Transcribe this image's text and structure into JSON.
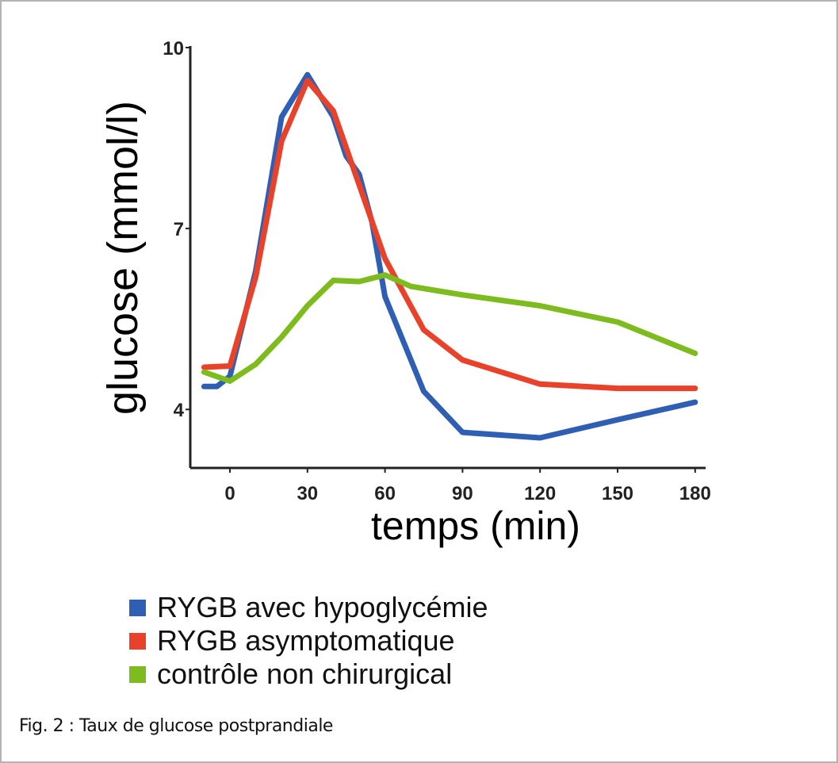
{
  "chart_data": {
    "type": "line",
    "title": "",
    "xlabel": "temps (min)",
    "ylabel": "glucose (mmol/l)",
    "xlim": [
      -15,
      184
    ],
    "ylim": [
      3.03,
      10
    ],
    "xticks": [
      0,
      30,
      60,
      90,
      120,
      150,
      180
    ],
    "yticks": [
      4,
      7,
      10
    ],
    "grid": false,
    "legend_position": "bottom",
    "series": [
      {
        "name": "RYGB avec hypoglycémie",
        "color": "#2f5fb3",
        "x": [
          -10,
          -5,
          0,
          10,
          20,
          30,
          40,
          45,
          50,
          55,
          60,
          75,
          90,
          120,
          150,
          180
        ],
        "y": [
          4.38,
          4.38,
          4.55,
          6.3,
          8.85,
          9.55,
          8.85,
          8.2,
          7.9,
          7.1,
          5.87,
          4.3,
          3.62,
          3.53,
          3.83,
          4.12
        ]
      },
      {
        "name": "RYGB asymptomatique",
        "color": "#e8432a",
        "x": [
          -10,
          0,
          10,
          20,
          30,
          40,
          60,
          75,
          90,
          120,
          150,
          180
        ],
        "y": [
          4.7,
          4.72,
          6.2,
          8.45,
          9.45,
          8.95,
          6.5,
          5.32,
          4.82,
          4.42,
          4.35,
          4.35
        ]
      },
      {
        "name": "contrôle non chirurgical",
        "color": "#7dbb1e",
        "x": [
          -10,
          0,
          10,
          20,
          30,
          40,
          50,
          60,
          70,
          90,
          120,
          150,
          180
        ],
        "y": [
          4.62,
          4.47,
          4.75,
          5.2,
          5.72,
          6.14,
          6.12,
          6.23,
          6.04,
          5.9,
          5.72,
          5.45,
          4.93
        ]
      }
    ]
  },
  "caption": "Fig. 2 : Taux de glucose postprandiale"
}
